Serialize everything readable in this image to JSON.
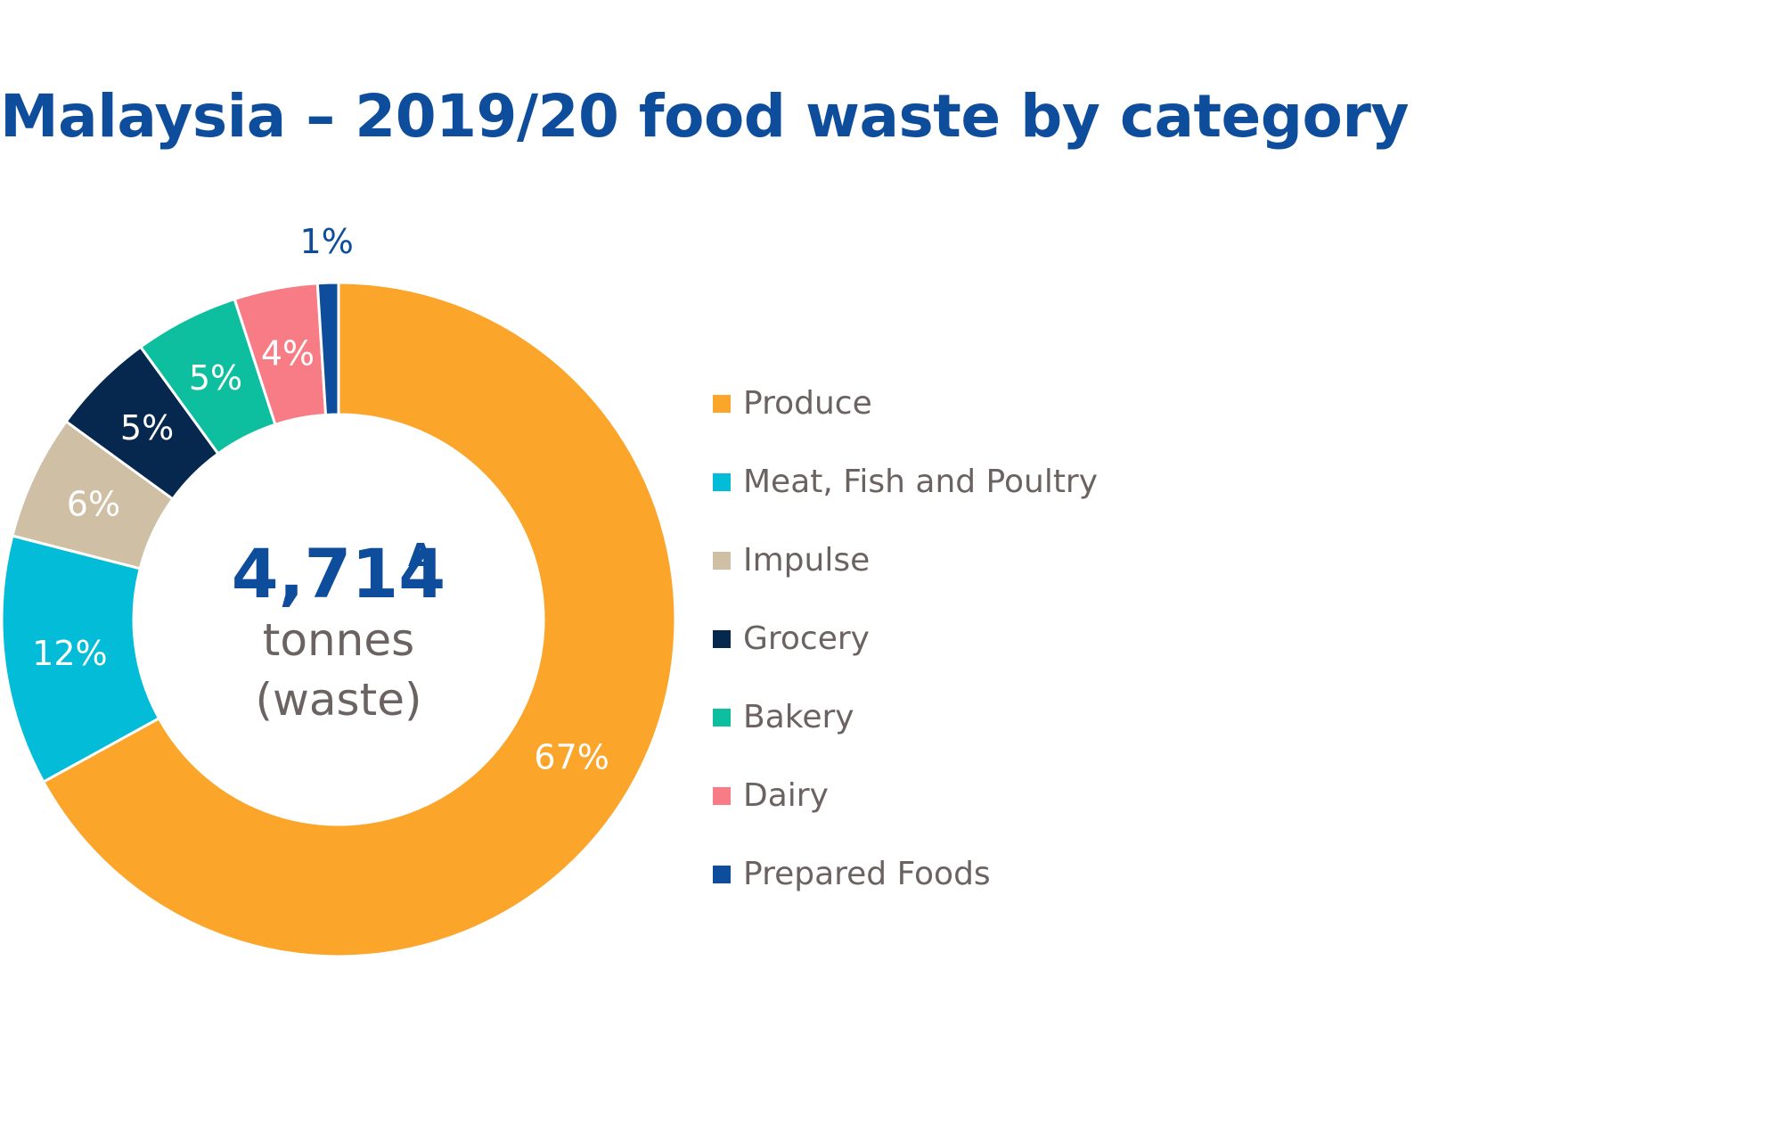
{
  "chart_data": {
    "type": "pie",
    "title": "Malaysia – 2019/20 food waste by category",
    "center": {
      "value": "4,714",
      "marker": "Δ",
      "line1": "tonnes",
      "line2": "(waste)"
    },
    "categories": [
      "Produce",
      "Meat, Fish and Poultry",
      "Impulse",
      "Grocery",
      "Bakery",
      "Dairy",
      "Prepared Foods"
    ],
    "values": [
      67,
      12,
      6,
      5,
      5,
      4,
      1
    ],
    "labels": [
      "67%",
      "12%",
      "6%",
      "5%",
      "5%",
      "4%",
      "1%"
    ],
    "colors": [
      "#fba52a",
      "#03bcd7",
      "#cfbfa5",
      "#06284e",
      "#0ebf9f",
      "#f87c85",
      "#0d4d9c"
    ],
    "legend_position": "right"
  }
}
